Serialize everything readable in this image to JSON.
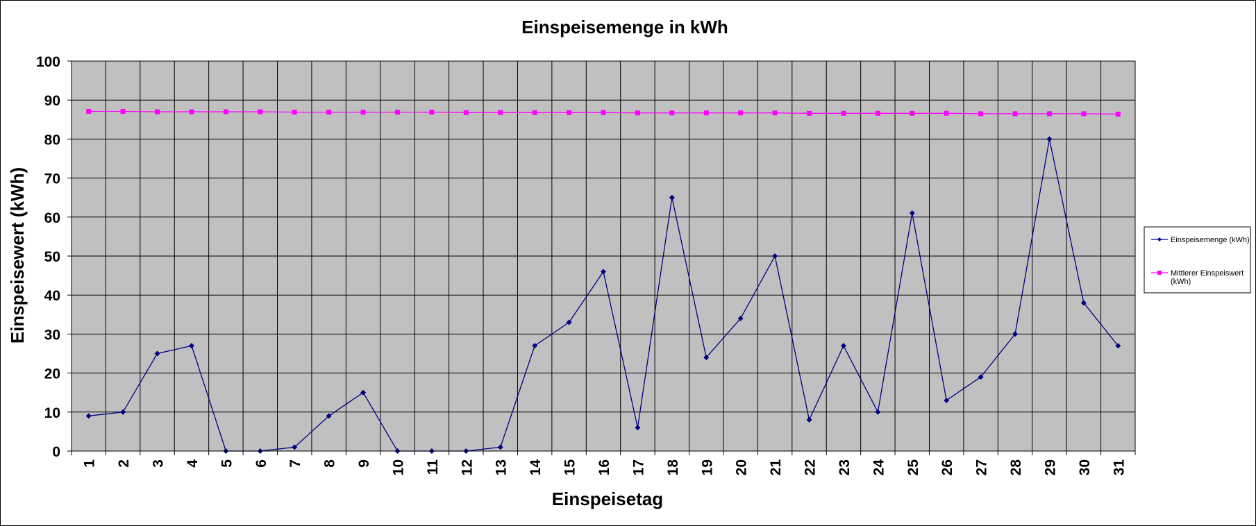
{
  "chart_data": {
    "type": "line",
    "title": "Einspeisemenge in kWh",
    "xlabel": "Einspeisetag",
    "ylabel": "Einspeisewert  (kWh)",
    "categories": [
      "1",
      "2",
      "3",
      "4",
      "5",
      "6",
      "7",
      "8",
      "9",
      "10",
      "11",
      "12",
      "13",
      "14",
      "15",
      "16",
      "17",
      "18",
      "19",
      "20",
      "21",
      "22",
      "23",
      "24",
      "25",
      "26",
      "27",
      "28",
      "29",
      "30",
      "31"
    ],
    "ylim": [
      0,
      100
    ],
    "yticks": [
      "0",
      "10",
      "20",
      "30",
      "40",
      "50",
      "60",
      "70",
      "80",
      "90",
      "100"
    ],
    "grid": true,
    "legend_position": "right",
    "series": [
      {
        "name": "Einspeisemenge (kWh)",
        "color": "#000080",
        "marker": "diamond",
        "values": [
          9,
          10,
          25,
          27,
          0,
          0,
          1,
          9,
          15,
          0,
          0,
          0,
          1,
          27,
          33,
          46,
          6,
          65,
          24,
          34,
          50,
          8,
          27,
          10,
          61,
          13,
          19,
          30,
          80,
          38,
          27
        ]
      },
      {
        "name": "Mittlerer Einspeiswert (kWh)",
        "legend_lines": [
          "Mittlerer Einspeiswert",
          "(kWh)"
        ],
        "color": "#ff00ff",
        "marker": "square",
        "values": [
          87.1,
          87.1,
          87.0,
          87.0,
          87.0,
          87.0,
          86.9,
          86.9,
          86.9,
          86.9,
          86.9,
          86.8,
          86.8,
          86.8,
          86.8,
          86.8,
          86.7,
          86.7,
          86.7,
          86.7,
          86.7,
          86.6,
          86.6,
          86.6,
          86.6,
          86.6,
          86.5,
          86.5,
          86.5,
          86.5,
          86.4
        ]
      }
    ],
    "plot_background": "#c0c0c0"
  }
}
